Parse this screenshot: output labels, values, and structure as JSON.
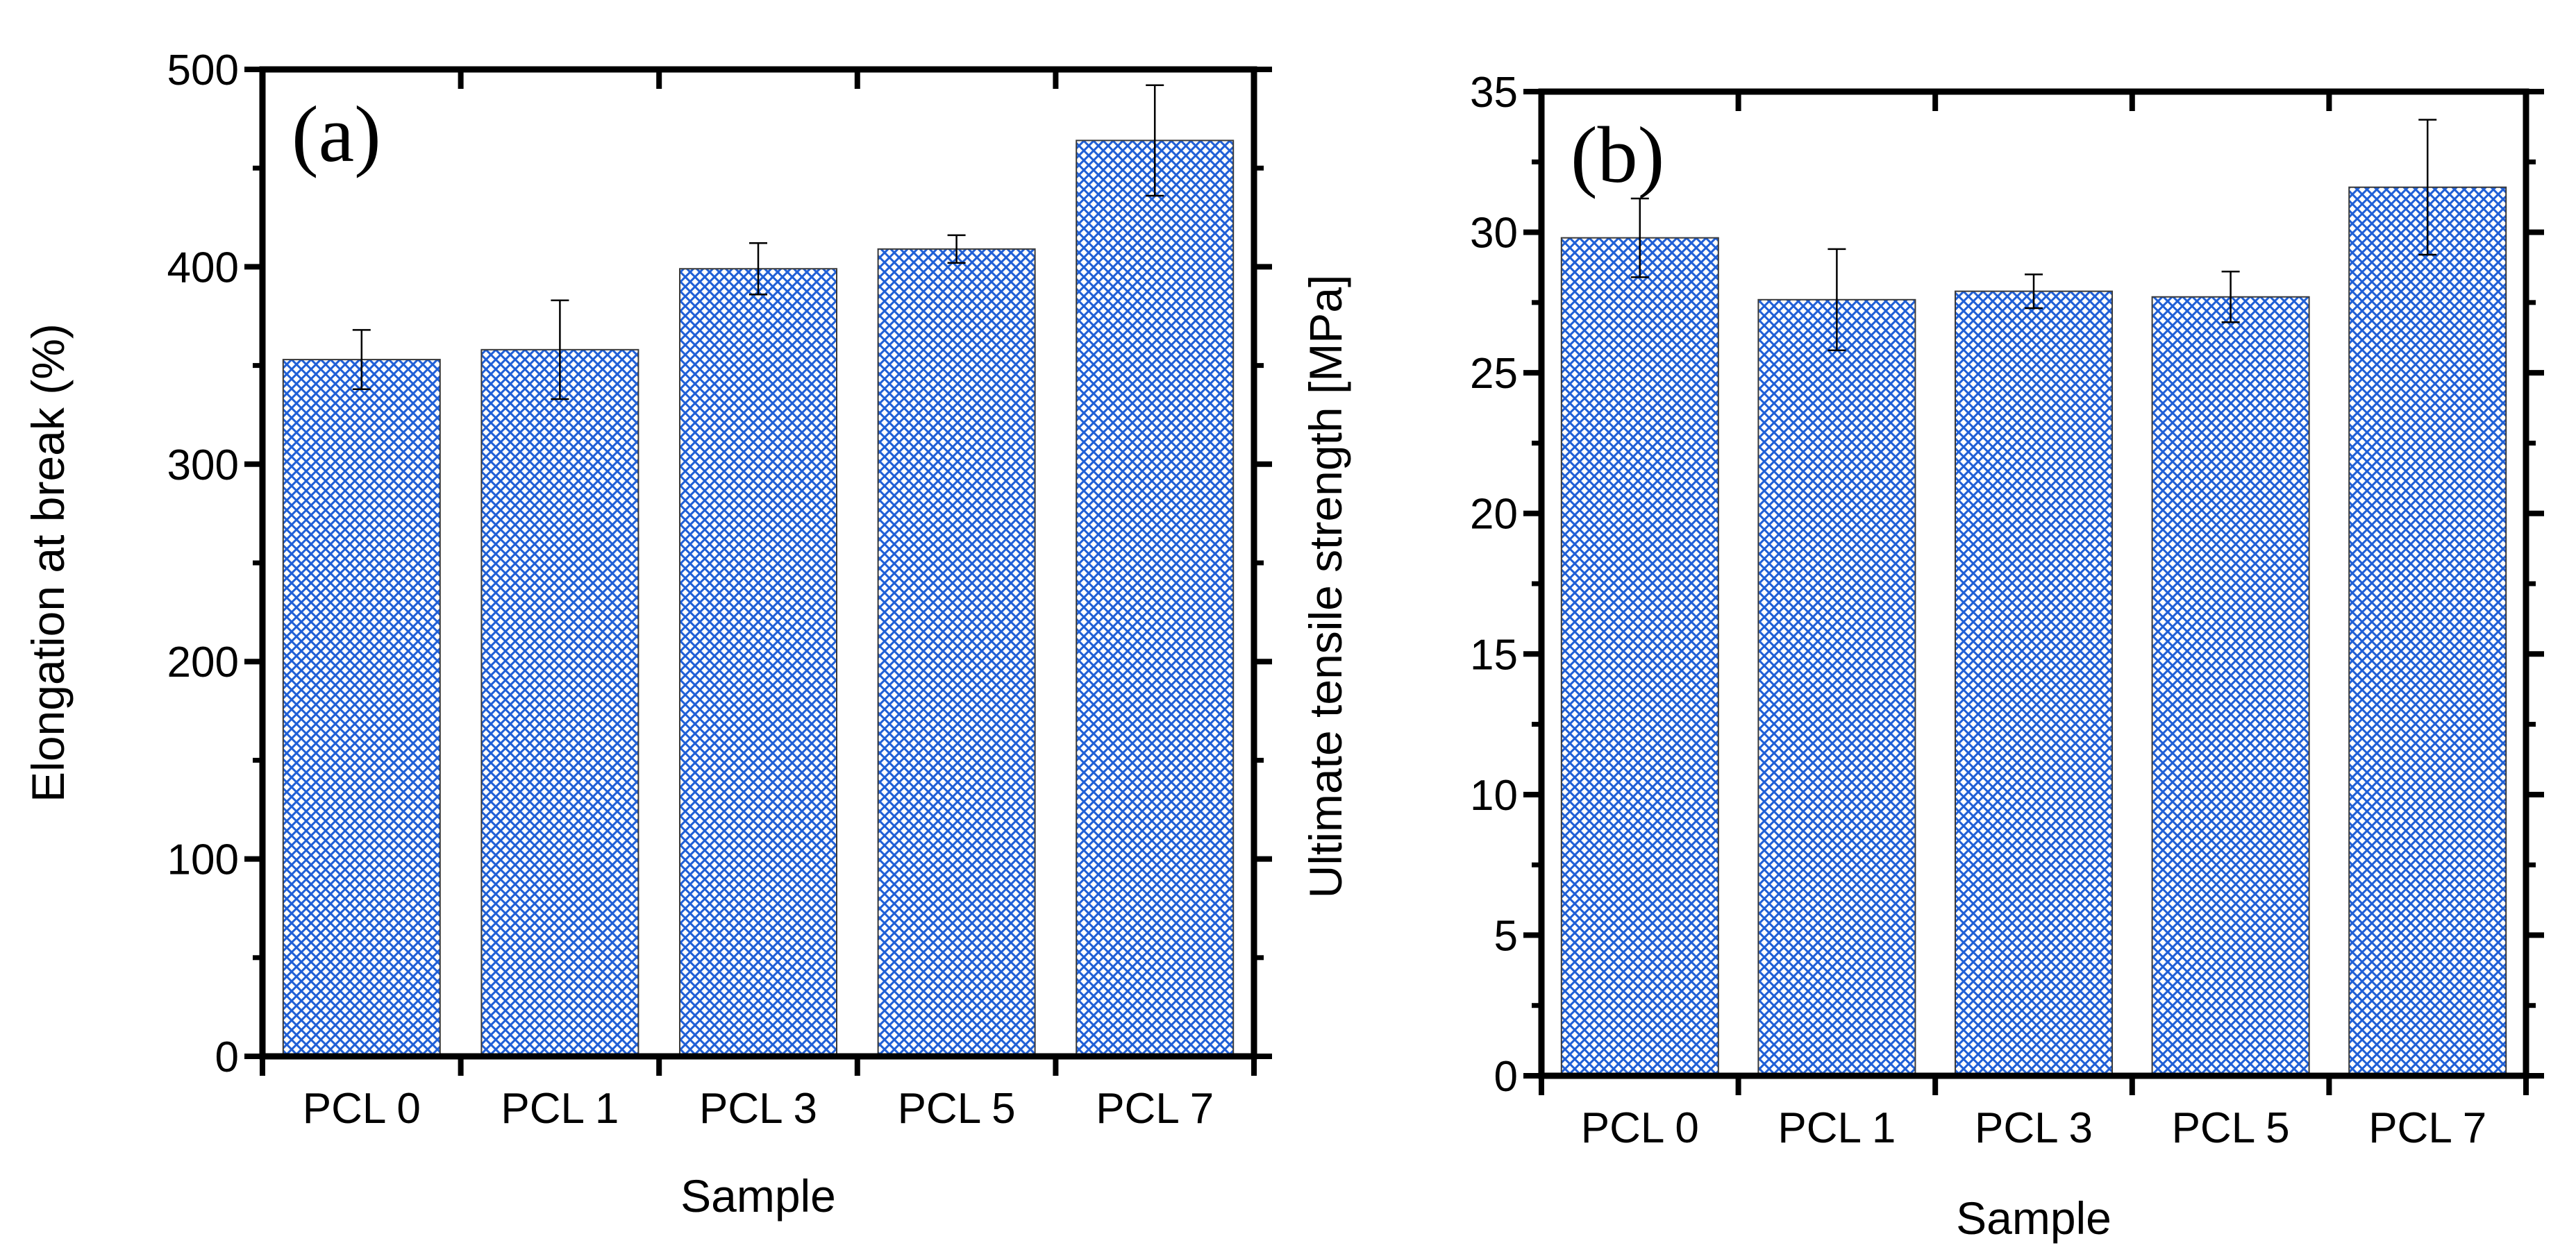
{
  "chart_data": [
    {
      "type": "bar",
      "panel_label": "(a)",
      "categories": [
        "PCL 0",
        "PCL 1",
        "PCL 3",
        "PCL 5",
        "PCL 7"
      ],
      "values": [
        353,
        358,
        399,
        409,
        464
      ],
      "errors": [
        15,
        25,
        13,
        7,
        28
      ],
      "xlabel": "Sample",
      "ylabel": "Elongation at break (%)",
      "ylim": [
        0,
        500
      ],
      "yticks": [
        "0",
        "100",
        "200",
        "300",
        "400",
        "500"
      ],
      "bar_color": "#1f5fd6"
    },
    {
      "type": "bar",
      "panel_label": "(b)",
      "categories": [
        "PCL 0",
        "PCL 1",
        "PCL 3",
        "PCL 5",
        "PCL 7"
      ],
      "values": [
        29.8,
        27.6,
        27.9,
        27.7,
        31.6
      ],
      "errors": [
        1.4,
        1.8,
        0.6,
        0.9,
        2.4
      ],
      "xlabel": "Sample",
      "ylabel": "Ultimate tensile strength [MPa]",
      "ylim": [
        0,
        35
      ],
      "yticks": [
        "0",
        "5",
        "10",
        "15",
        "20",
        "25",
        "30",
        "35"
      ],
      "bar_color": "#1f5fd6"
    }
  ]
}
